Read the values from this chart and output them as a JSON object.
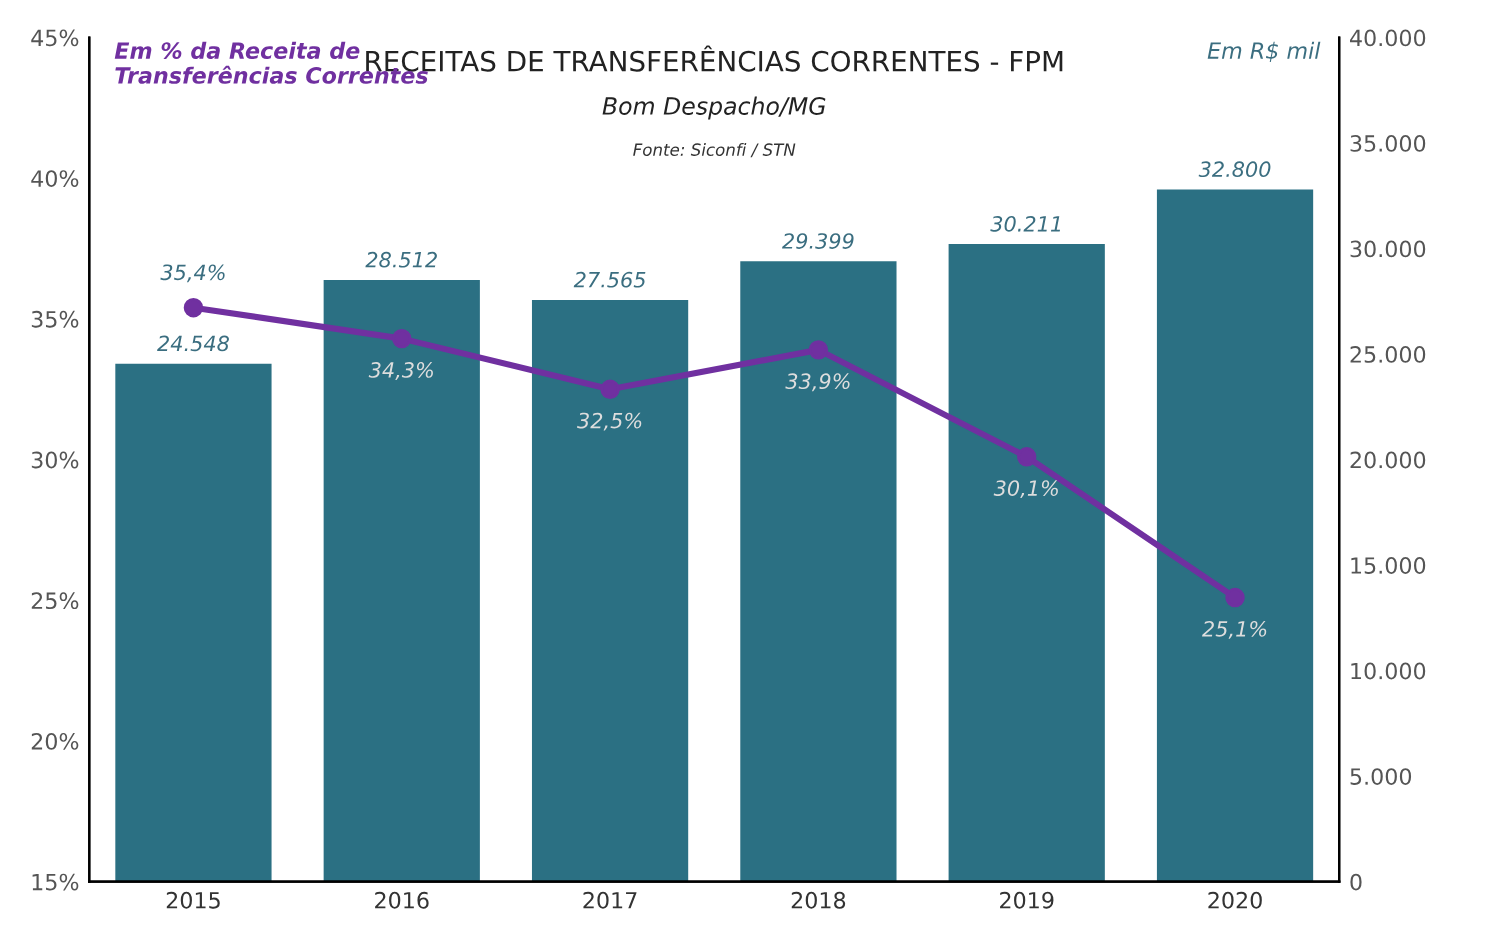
{
  "chart_data": {
    "type": "bar",
    "title": "RECEITAS DE TRANSFERÊNCIAS CORRENTES - FPM",
    "subtitle": "Bom Despacho/MG",
    "ylabel": "Em % da Receita de Transferências Correntes",
    "y2label": "Em R$ mil",
    "annotations": [
      "Fonte: Siconfi / STN"
    ],
    "categories": [
      "2015",
      "2016",
      "2017",
      "2018",
      "2019",
      "2020"
    ],
    "series": [
      {
        "axis": "y2",
        "color": "#2b7083",
        "values": [
          24548,
          28512,
          27565,
          29399,
          30211,
          32800
        ],
        "value_labels": [
          "24.548",
          "28.512",
          "27.565",
          "29.399",
          "30.211",
          "32.800"
        ]
      },
      {
        "type": "line",
        "axis": "y",
        "color": "#7030a0",
        "marker": "circle",
        "values": [
          35.4,
          34.3,
          32.5,
          33.9,
          30.1,
          25.1
        ],
        "value_labels": [
          "35,4%",
          "34,3%",
          "32,5%",
          "33,9%",
          "30,1%",
          "25,1%"
        ]
      }
    ],
    "ylim": [
      15,
      45
    ],
    "yticks": [
      {
        "value": 15,
        "label": "15%"
      },
      {
        "value": 20,
        "label": "20%"
      },
      {
        "value": 25,
        "label": "25%"
      },
      {
        "value": 30,
        "label": "30%"
      },
      {
        "value": 35,
        "label": "35%"
      },
      {
        "value": 40,
        "label": "40%"
      },
      {
        "value": 45,
        "label": "45%"
      }
    ],
    "y2lim": [
      0,
      40000
    ],
    "y2ticks": [
      0,
      {
        "value": 5000,
        "label": "5.000"
      },
      {
        "value": 10000,
        "label": "10.000"
      },
      {
        "value": 15000,
        "label": "15.000"
      },
      {
        "value": 20000,
        "label": "20.000"
      },
      {
        "value": 25000,
        "label": "25.000"
      },
      {
        "value": 30000,
        "label": "30.000"
      },
      {
        "value": 35000,
        "label": "35.000"
      },
      {
        "value": 40000,
        "label": "40.000"
      }
    ],
    "grid": false,
    "legend": false
  }
}
